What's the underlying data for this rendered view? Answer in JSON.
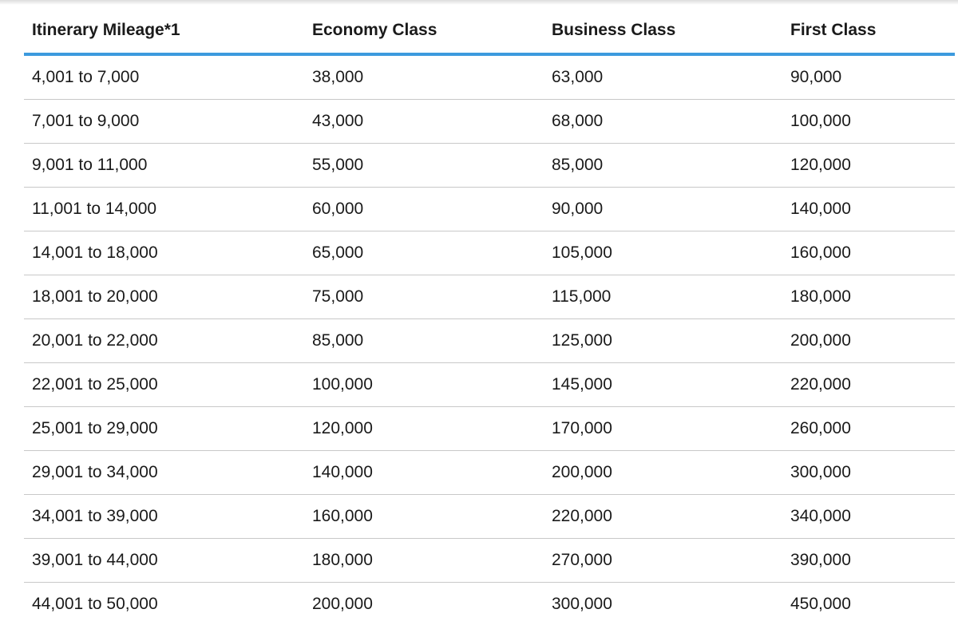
{
  "table": {
    "headers": [
      "Itinerary Mileage*1",
      "Economy Class",
      "Business Class",
      "First Class"
    ],
    "rows": [
      [
        "4,001 to 7,000",
        "38,000",
        "63,000",
        "90,000"
      ],
      [
        "7,001 to 9,000",
        "43,000",
        "68,000",
        "100,000"
      ],
      [
        "9,001 to 11,000",
        "55,000",
        "85,000",
        "120,000"
      ],
      [
        "11,001 to 14,000",
        "60,000",
        "90,000",
        "140,000"
      ],
      [
        "14,001 to 18,000",
        "65,000",
        "105,000",
        "160,000"
      ],
      [
        "18,001 to 20,000",
        "75,000",
        "115,000",
        "180,000"
      ],
      [
        "20,001 to 22,000",
        "85,000",
        "125,000",
        "200,000"
      ],
      [
        "22,001 to 25,000",
        "100,000",
        "145,000",
        "220,000"
      ],
      [
        "25,001 to 29,000",
        "120,000",
        "170,000",
        "260,000"
      ],
      [
        "29,001 to 34,000",
        "140,000",
        "200,000",
        "300,000"
      ],
      [
        "34,001 to 39,000",
        "160,000",
        "220,000",
        "340,000"
      ],
      [
        "39,001 to 44,000",
        "180,000",
        "270,000",
        "390,000"
      ],
      [
        "44,001 to 50,000",
        "200,000",
        "300,000",
        "450,000"
      ]
    ]
  },
  "colors": {
    "header_rule": "#3c9ade",
    "row_divider": "#c8c8c8",
    "text": "#1a1a1a"
  }
}
